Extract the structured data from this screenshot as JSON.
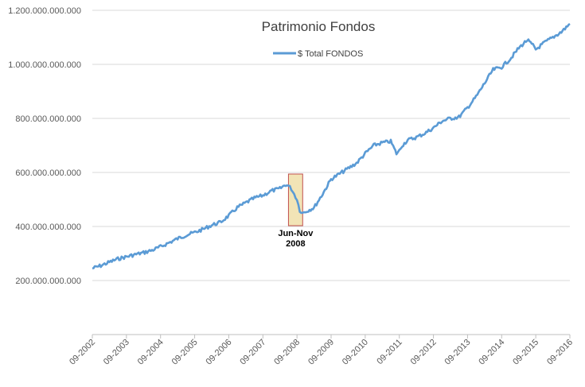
{
  "chart_data": {
    "type": "line",
    "title": "Patrimonio Fondos",
    "xlabel": "",
    "ylabel": "",
    "ylim": [
      0,
      1200000000000
    ],
    "y_ticks": [
      {
        "value": 200000000000,
        "label": "200.000.000.000"
      },
      {
        "value": 400000000000,
        "label": "400.000.000.000"
      },
      {
        "value": 600000000000,
        "label": "600.000.000.000"
      },
      {
        "value": 800000000000,
        "label": "800.000.000.000"
      },
      {
        "value": 1000000000000,
        "label": "1.000.000.000.000"
      },
      {
        "value": 1200000000000,
        "label": "1.200.000.000.000"
      }
    ],
    "x_tick_labels": [
      "09-2002",
      "09-2003",
      "09-2004",
      "09-2005",
      "09-2006",
      "09-2007",
      "09-2008",
      "09-2009",
      "09-2010",
      "09-2011",
      "09-2012",
      "09-2013",
      "09-2014",
      "09-2015",
      "09-2016"
    ],
    "grid": "horizontal",
    "legend_position": "top",
    "series": [
      {
        "name": "$ Total FONDOS",
        "color": "#5b9bd5",
        "x": [
          "09-2002",
          "12-2002",
          "03-2003",
          "06-2003",
          "09-2003",
          "12-2003",
          "03-2004",
          "06-2004",
          "09-2004",
          "12-2004",
          "03-2005",
          "06-2005",
          "09-2005",
          "12-2005",
          "03-2006",
          "06-2006",
          "09-2006",
          "12-2006",
          "03-2007",
          "06-2007",
          "09-2007",
          "12-2007",
          "03-2008",
          "05-2008",
          "06-2008",
          "07-2008",
          "08-2008",
          "09-2008",
          "10-2008",
          "11-2008",
          "12-2008",
          "01-2009",
          "03-2009",
          "06-2009",
          "09-2009",
          "12-2009",
          "03-2010",
          "06-2010",
          "09-2010",
          "12-2010",
          "03-2011",
          "06-2011",
          "08-2011",
          "09-2011",
          "10-2011",
          "12-2011",
          "03-2012",
          "06-2012",
          "09-2012",
          "12-2012",
          "03-2013",
          "06-2013",
          "09-2013",
          "12-2013",
          "03-2014",
          "06-2014",
          "09-2014",
          "12-2014",
          "03-2015",
          "06-2015",
          "08-2015",
          "09-2015",
          "12-2015",
          "03-2016",
          "06-2016",
          "09-2016"
        ],
        "values": [
          245000000000,
          255000000000,
          268000000000,
          280000000000,
          288000000000,
          296000000000,
          303000000000,
          312000000000,
          325000000000,
          340000000000,
          355000000000,
          368000000000,
          378000000000,
          390000000000,
          405000000000,
          415000000000,
          440000000000,
          470000000000,
          488000000000,
          505000000000,
          515000000000,
          532000000000,
          540000000000,
          555000000000,
          550000000000,
          540000000000,
          520000000000,
          500000000000,
          460000000000,
          450000000000,
          455000000000,
          460000000000,
          470000000000,
          520000000000,
          575000000000,
          595000000000,
          615000000000,
          635000000000,
          670000000000,
          700000000000,
          710000000000,
          715000000000,
          670000000000,
          680000000000,
          700000000000,
          720000000000,
          730000000000,
          745000000000,
          765000000000,
          790000000000,
          800000000000,
          805000000000,
          840000000000,
          880000000000,
          930000000000,
          980000000000,
          990000000000,
          1020000000000,
          1060000000000,
          1090000000000,
          1070000000000,
          1055000000000,
          1080000000000,
          1100000000000,
          1120000000000,
          1150000000000
        ]
      }
    ],
    "annotations": [
      {
        "lines": [
          "Jun-Nov",
          "2008"
        ],
        "x_start": "06-2008",
        "x_end": "11-2008",
        "color": "#f2e4b6",
        "border": "#c0504d"
      }
    ]
  }
}
